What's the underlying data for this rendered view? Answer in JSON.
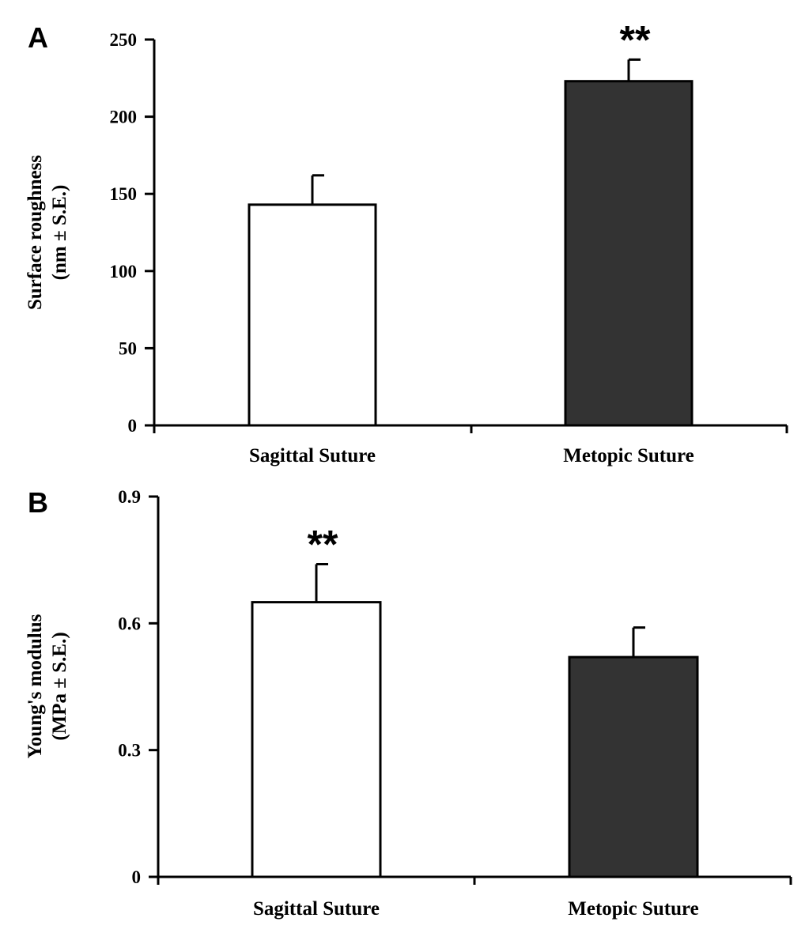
{
  "chart_data": [
    {
      "panel": "A",
      "type": "bar",
      "categories": [
        "Sagittal Suture",
        "Metopic Suture"
      ],
      "values": [
        143,
        223
      ],
      "errors": [
        19,
        14
      ],
      "significance": [
        "",
        "**"
      ],
      "ylim": [
        0,
        250
      ],
      "yticks": [
        0,
        50,
        100,
        150,
        200,
        250
      ],
      "ytick_labels": [
        "0",
        "50",
        "100",
        "150",
        "200",
        "250"
      ],
      "ylabel_lines": [
        "Surface roughness",
        "(nm ± S.E.)"
      ],
      "bar_colors": [
        "#ffffff",
        "#333333"
      ],
      "grid": false
    },
    {
      "panel": "B",
      "type": "bar",
      "categories": [
        "Sagittal Suture",
        "Metopic Suture"
      ],
      "values": [
        0.65,
        0.52
      ],
      "errors": [
        0.09,
        0.07
      ],
      "significance": [
        "**",
        ""
      ],
      "ylim": [
        0,
        0.9
      ],
      "yticks": [
        0,
        0.3,
        0.6,
        0.9
      ],
      "ytick_labels": [
        "0",
        "0.3",
        "0.6",
        "0.9"
      ],
      "ylabel_lines": [
        "Young's modulus",
        "(MPa ± S.E.)"
      ],
      "bar_colors": [
        "#ffffff",
        "#333333"
      ],
      "grid": false
    }
  ]
}
